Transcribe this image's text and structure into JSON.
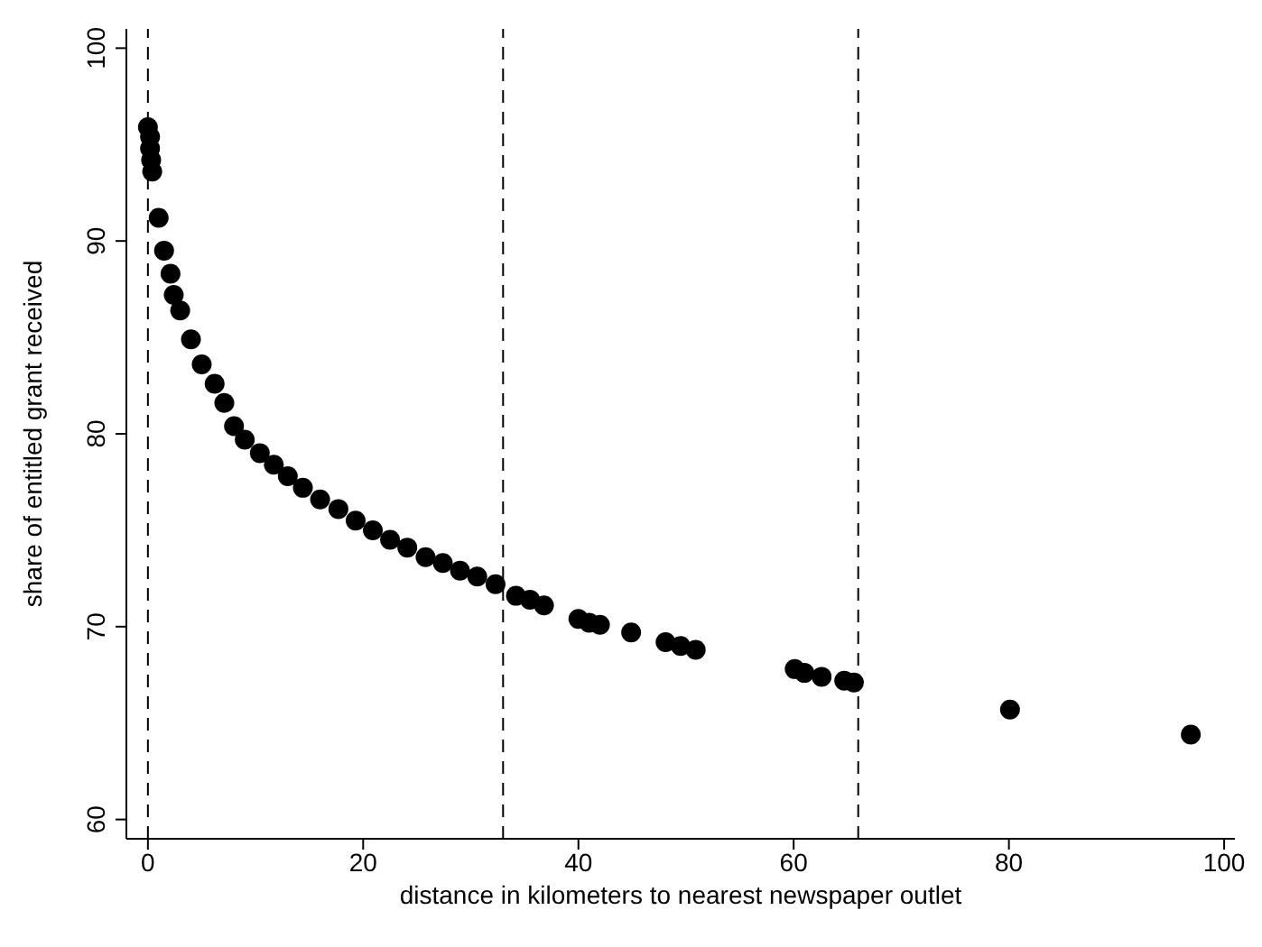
{
  "chart_data": {
    "type": "scatter",
    "xlabel": "distance in kilometers to nearest newspaper outlet",
    "ylabel": "share of entitled grant received",
    "x": [
      0,
      0.2,
      0.2,
      0.3,
      0.4,
      1,
      1.5,
      2.1,
      2.4,
      3,
      4,
      5,
      6.2,
      7.1,
      8,
      9,
      10.4,
      11.7,
      13,
      14.4,
      16,
      17.7,
      19.3,
      20.9,
      22.5,
      24.1,
      25.8,
      27.4,
      29,
      30.6,
      32.3,
      34.2,
      35.5,
      36.8,
      40,
      41,
      42,
      44.9,
      48.1,
      49.5,
      50.9,
      60.1,
      61,
      62.6,
      64.7,
      65.6,
      80.1,
      96.9
    ],
    "series": [
      {
        "color": "#000000",
        "values": [
          95.9,
          95.4,
          94.8,
          94.2,
          93.6,
          91.2,
          89.5,
          88.3,
          87.2,
          86.4,
          84.9,
          83.6,
          82.6,
          81.6,
          80.4,
          79.7,
          79.0,
          78.4,
          77.8,
          77.2,
          76.6,
          76.1,
          75.5,
          75.0,
          74.5,
          74.1,
          73.6,
          73.3,
          72.9,
          72.6,
          72.2,
          71.6,
          71.4,
          71.1,
          70.4,
          70.2,
          70.1,
          69.7,
          69.2,
          69.0,
          68.8,
          67.8,
          67.6,
          67.4,
          67.2,
          67.1,
          65.7,
          64.4
        ]
      }
    ],
    "xlim": [
      -2,
      101
    ],
    "ylim": [
      59,
      101
    ],
    "xticks": [
      0,
      20,
      40,
      60,
      80,
      100
    ],
    "yticks": [
      60,
      70,
      80,
      90,
      100
    ],
    "ref_lines": [
      {
        "axis": "x",
        "value": 0,
        "line_style": "dashed"
      },
      {
        "axis": "x",
        "value": 33,
        "line_style": "dashed"
      },
      {
        "axis": "x",
        "value": 66,
        "line_style": "dashed"
      }
    ],
    "marker": "circle",
    "grid": false
  }
}
